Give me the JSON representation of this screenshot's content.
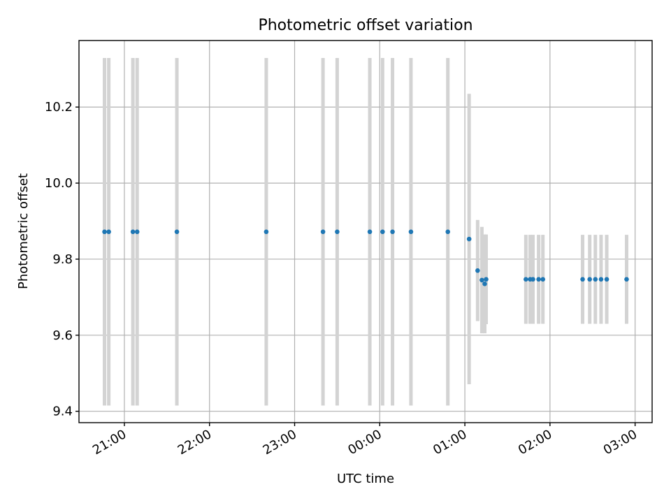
{
  "chart_data": {
    "type": "scatter",
    "title": "Photometric offset variation",
    "xlabel": "UTC time",
    "ylabel": "Photometric offset",
    "x_start": "20:30",
    "xlim_minutes": [
      -32,
      372
    ],
    "ylim": [
      9.37,
      10.375
    ],
    "grid": true,
    "x_ticks": [
      {
        "minutes": 0,
        "label": "21:00"
      },
      {
        "minutes": 60,
        "label": "22:00"
      },
      {
        "minutes": 120,
        "label": "23:00"
      },
      {
        "minutes": 180,
        "label": "00:00"
      },
      {
        "minutes": 240,
        "label": "01:00"
      },
      {
        "minutes": 300,
        "label": "02:00"
      },
      {
        "minutes": 360,
        "label": "03:00"
      }
    ],
    "y_ticks": [
      {
        "value": 9.4,
        "label": "9.4"
      },
      {
        "value": 9.6,
        "label": "9.6"
      },
      {
        "value": 9.8,
        "label": "9.8"
      },
      {
        "value": 10.0,
        "label": "10.0"
      },
      {
        "value": 10.2,
        "label": "10.2"
      }
    ],
    "series": [
      {
        "marker_color": "#1f77b4",
        "errorbar_color": "#d3d3d3",
        "points": [
          {
            "time": "20:46",
            "y": 9.872,
            "err": 0.457
          },
          {
            "time": "20:49",
            "y": 9.872,
            "err": 0.457
          },
          {
            "time": "21:06",
            "y": 9.872,
            "err": 0.457
          },
          {
            "time": "21:09",
            "y": 9.872,
            "err": 0.457
          },
          {
            "time": "21:37",
            "y": 9.872,
            "err": 0.457
          },
          {
            "time": "22:40",
            "y": 9.872,
            "err": 0.457
          },
          {
            "time": "23:20",
            "y": 9.872,
            "err": 0.457
          },
          {
            "time": "23:30",
            "y": 9.872,
            "err": 0.457
          },
          {
            "time": "23:53",
            "y": 9.872,
            "err": 0.457
          },
          {
            "time": "00:02",
            "y": 9.872,
            "err": 0.457
          },
          {
            "time": "00:09",
            "y": 9.872,
            "err": 0.457
          },
          {
            "time": "00:22",
            "y": 9.872,
            "err": 0.457
          },
          {
            "time": "00:48",
            "y": 9.872,
            "err": 0.457
          },
          {
            "time": "01:03",
            "y": 9.853,
            "err": 0.382
          },
          {
            "time": "01:09",
            "y": 9.77,
            "err": 0.133
          },
          {
            "time": "01:12",
            "y": 9.745,
            "err": 0.14
          },
          {
            "time": "01:14",
            "y": 9.735,
            "err": 0.13
          },
          {
            "time": "01:15",
            "y": 9.747,
            "err": 0.118
          },
          {
            "time": "01:43",
            "y": 9.747,
            "err": 0.117
          },
          {
            "time": "01:46",
            "y": 9.747,
            "err": 0.117
          },
          {
            "time": "01:48",
            "y": 9.747,
            "err": 0.117
          },
          {
            "time": "01:52",
            "y": 9.747,
            "err": 0.117
          },
          {
            "time": "01:55",
            "y": 9.747,
            "err": 0.117
          },
          {
            "time": "02:23",
            "y": 9.747,
            "err": 0.117
          },
          {
            "time": "02:28",
            "y": 9.747,
            "err": 0.117
          },
          {
            "time": "02:32",
            "y": 9.747,
            "err": 0.117
          },
          {
            "time": "02:36",
            "y": 9.747,
            "err": 0.117
          },
          {
            "time": "02:40",
            "y": 9.747,
            "err": 0.117
          },
          {
            "time": "02:54",
            "y": 9.747,
            "err": 0.117
          }
        ]
      }
    ]
  }
}
